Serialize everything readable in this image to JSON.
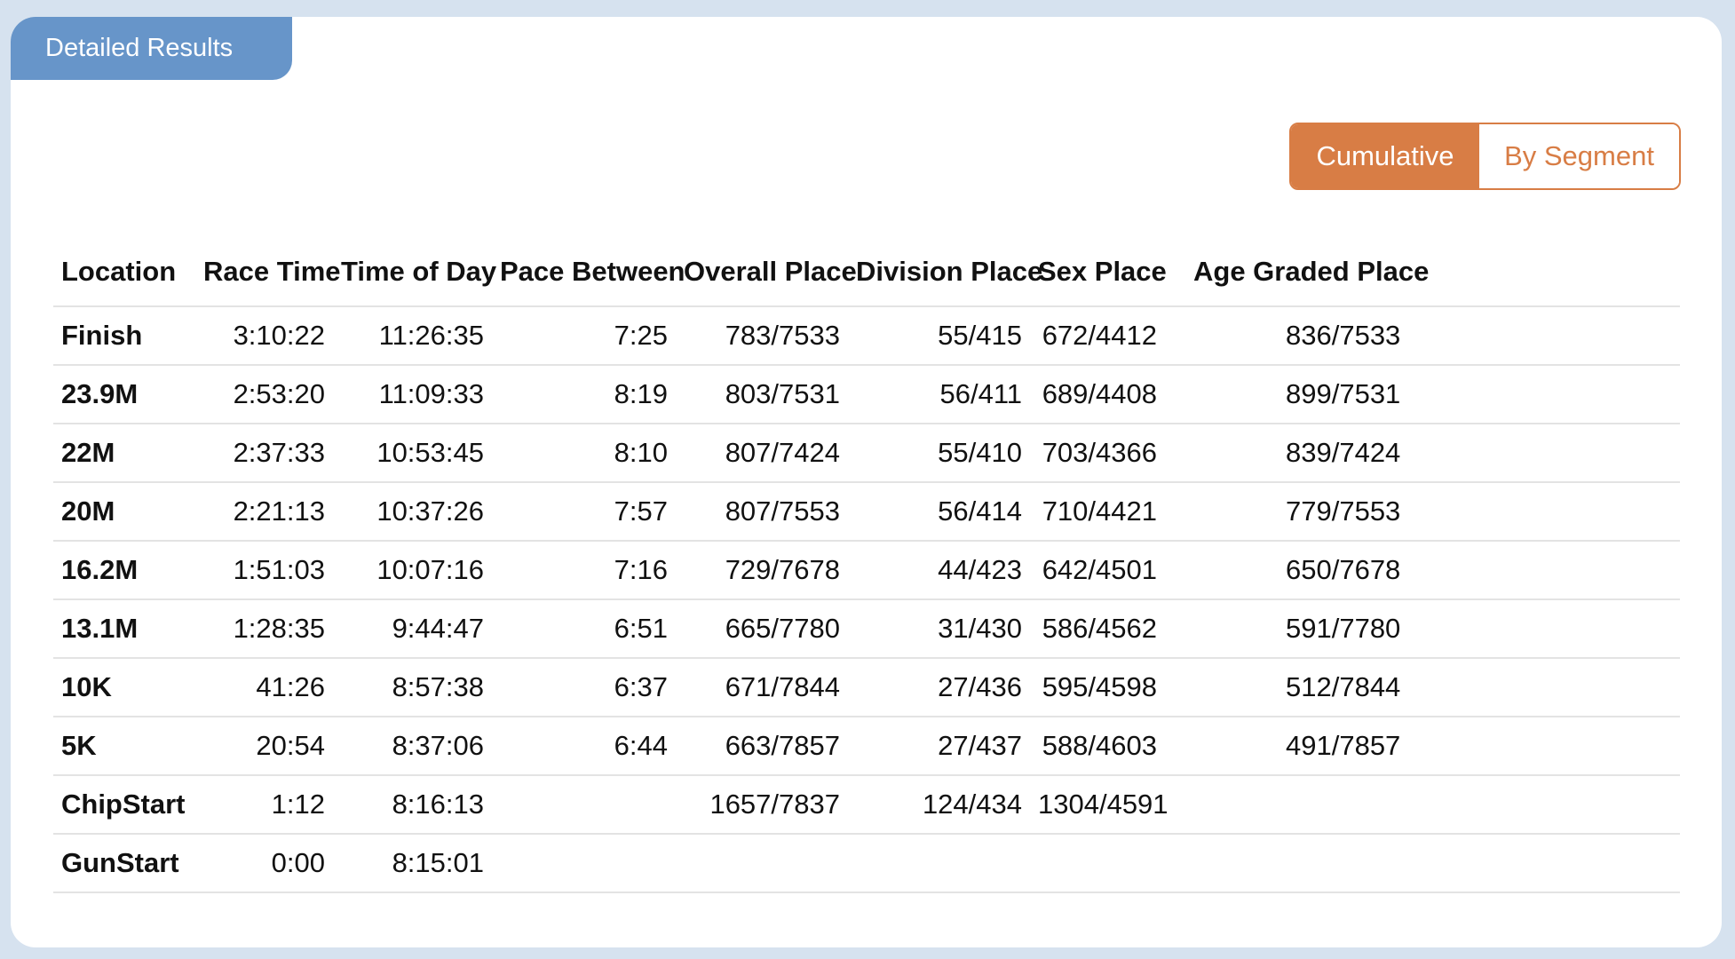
{
  "card": {
    "tab_label": "Detailed Results"
  },
  "toggle": {
    "cumulative_label": "Cumulative",
    "by_segment_label": "By Segment",
    "selected": "Cumulative",
    "accent_color": "#d87d45"
  },
  "table": {
    "headers": [
      "Location",
      "Race Time",
      "Time of Day",
      "Pace Between",
      "Overall Place",
      "Division Place",
      "Sex Place",
      "Age Graded Place"
    ],
    "rows": [
      [
        "Finish",
        "3:10:22",
        "11:26:35",
        "7:25",
        "783/7533",
        "55/415",
        "672/4412",
        "836/7533"
      ],
      [
        "23.9M",
        "2:53:20",
        "11:09:33",
        "8:19",
        "803/7531",
        "56/411",
        "689/4408",
        "899/7531"
      ],
      [
        "22M",
        "2:37:33",
        "10:53:45",
        "8:10",
        "807/7424",
        "55/410",
        "703/4366",
        "839/7424"
      ],
      [
        "20M",
        "2:21:13",
        "10:37:26",
        "7:57",
        "807/7553",
        "56/414",
        "710/4421",
        "779/7553"
      ],
      [
        "16.2M",
        "1:51:03",
        "10:07:16",
        "7:16",
        "729/7678",
        "44/423",
        "642/4501",
        "650/7678"
      ],
      [
        "13.1M",
        "1:28:35",
        "9:44:47",
        "6:51",
        "665/7780",
        "31/430",
        "586/4562",
        "591/7780"
      ],
      [
        "10K",
        "41:26",
        "8:57:38",
        "6:37",
        "671/7844",
        "27/436",
        "595/4598",
        "512/7844"
      ],
      [
        "5K",
        "20:54",
        "8:37:06",
        "6:44",
        "663/7857",
        "27/437",
        "588/4603",
        "491/7857"
      ],
      [
        "ChipStart",
        "1:12",
        "8:16:13",
        "",
        "1657/7837",
        "124/434",
        "1304/4591",
        ""
      ],
      [
        "GunStart",
        "0:00",
        "8:15:01",
        "",
        "",
        "",
        "",
        ""
      ]
    ]
  }
}
